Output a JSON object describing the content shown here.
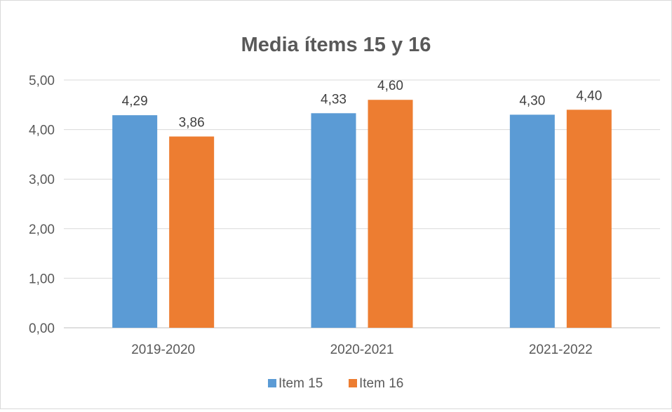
{
  "chart_data": {
    "type": "bar",
    "title": "Media ítems 15 y 16",
    "categories": [
      "2019-2020",
      "2020-2021",
      "2021-2022"
    ],
    "series": [
      {
        "name": "Item 15",
        "color": "#5b9bd5",
        "values": [
          4.29,
          4.33,
          4.3
        ],
        "labels": [
          "4,29",
          "4,33",
          "4,30"
        ]
      },
      {
        "name": "Item 16",
        "color": "#ed7d31",
        "values": [
          3.86,
          4.6,
          4.4
        ],
        "labels": [
          "3,86",
          "4,60",
          "4,40"
        ]
      }
    ],
    "yticks": [
      0,
      1,
      2,
      3,
      4,
      5
    ],
    "ytick_labels": [
      "0,00",
      "1,00",
      "2,00",
      "3,00",
      "4,00",
      "5,00"
    ],
    "ylim": [
      0,
      5
    ],
    "xlabel": "",
    "ylabel": "",
    "grid": true,
    "legend": "bottom-center"
  }
}
